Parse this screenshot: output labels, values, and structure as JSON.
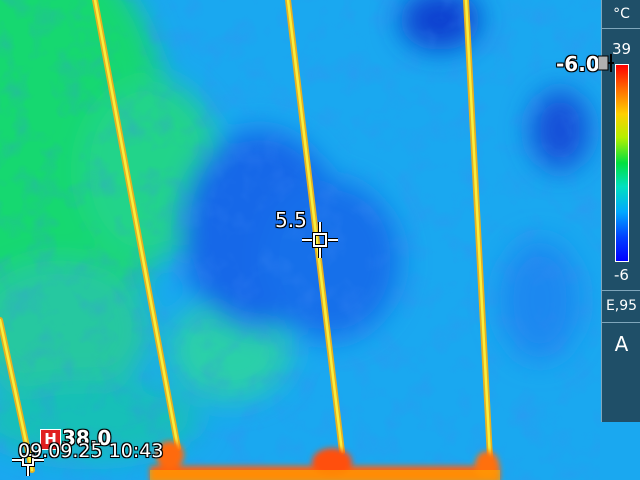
{
  "colors": {
    "background": "#1aa8f0",
    "cold": "#1040e0",
    "warm": "#20e060",
    "hot_wire": "#f0e020",
    "hot_edge": "#ff5010",
    "sidebar": "#1f4f68"
  },
  "icons": {
    "spot_cursor": "crosshair-icon",
    "hot_marker": "crosshair-icon",
    "scale_marker": "pin-icon"
  },
  "spot": {
    "value": "5.5"
  },
  "scale_marker": {
    "value": "-6.0"
  },
  "hot_spot": {
    "badge": "H",
    "value": "38.0"
  },
  "datetime": "09.09.25 10:43",
  "scale": {
    "unit": "°C",
    "max": "39",
    "min": "-6"
  },
  "emissivity": "E,95",
  "mode": "A"
}
